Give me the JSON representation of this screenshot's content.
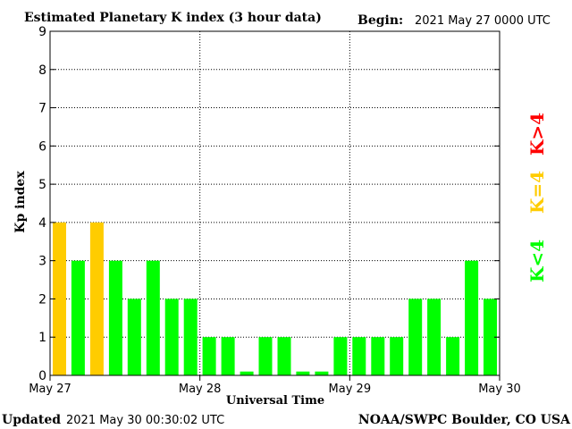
{
  "header": {
    "title": "Estimated Planetary K index (3 hour data)",
    "begin_label": "Begin:",
    "begin_value": "2021 May 27 0000 UTC"
  },
  "footer": {
    "updated_label": "Updated",
    "updated_value": "2021 May 30 00:30:02 UTC",
    "credit": "NOAA/SWPC Boulder, CO USA"
  },
  "legend": {
    "high": "K>4",
    "mid": "K=4",
    "low": "K<4"
  },
  "colors": {
    "low": "#00ff00",
    "mid": "#ffcc00",
    "high": "#ff0000"
  },
  "chart_data": {
    "type": "bar",
    "title": "Estimated Planetary K index (3 hour data)",
    "xlabel": "Universal Time",
    "ylabel": "Kp index",
    "ylim": [
      0,
      9
    ],
    "y_ticks": [
      0,
      1,
      2,
      3,
      4,
      5,
      6,
      7,
      8,
      9
    ],
    "x_tick_labels": [
      "May 27",
      "May 28",
      "May 29",
      "May 30"
    ],
    "grid": true,
    "interval_hours": 3,
    "values": [
      4,
      3,
      4,
      3,
      2,
      3,
      2,
      2,
      1,
      1,
      0.1,
      1,
      1,
      0.1,
      0.1,
      1,
      1,
      1,
      1,
      2,
      2,
      1,
      3,
      2
    ]
  }
}
